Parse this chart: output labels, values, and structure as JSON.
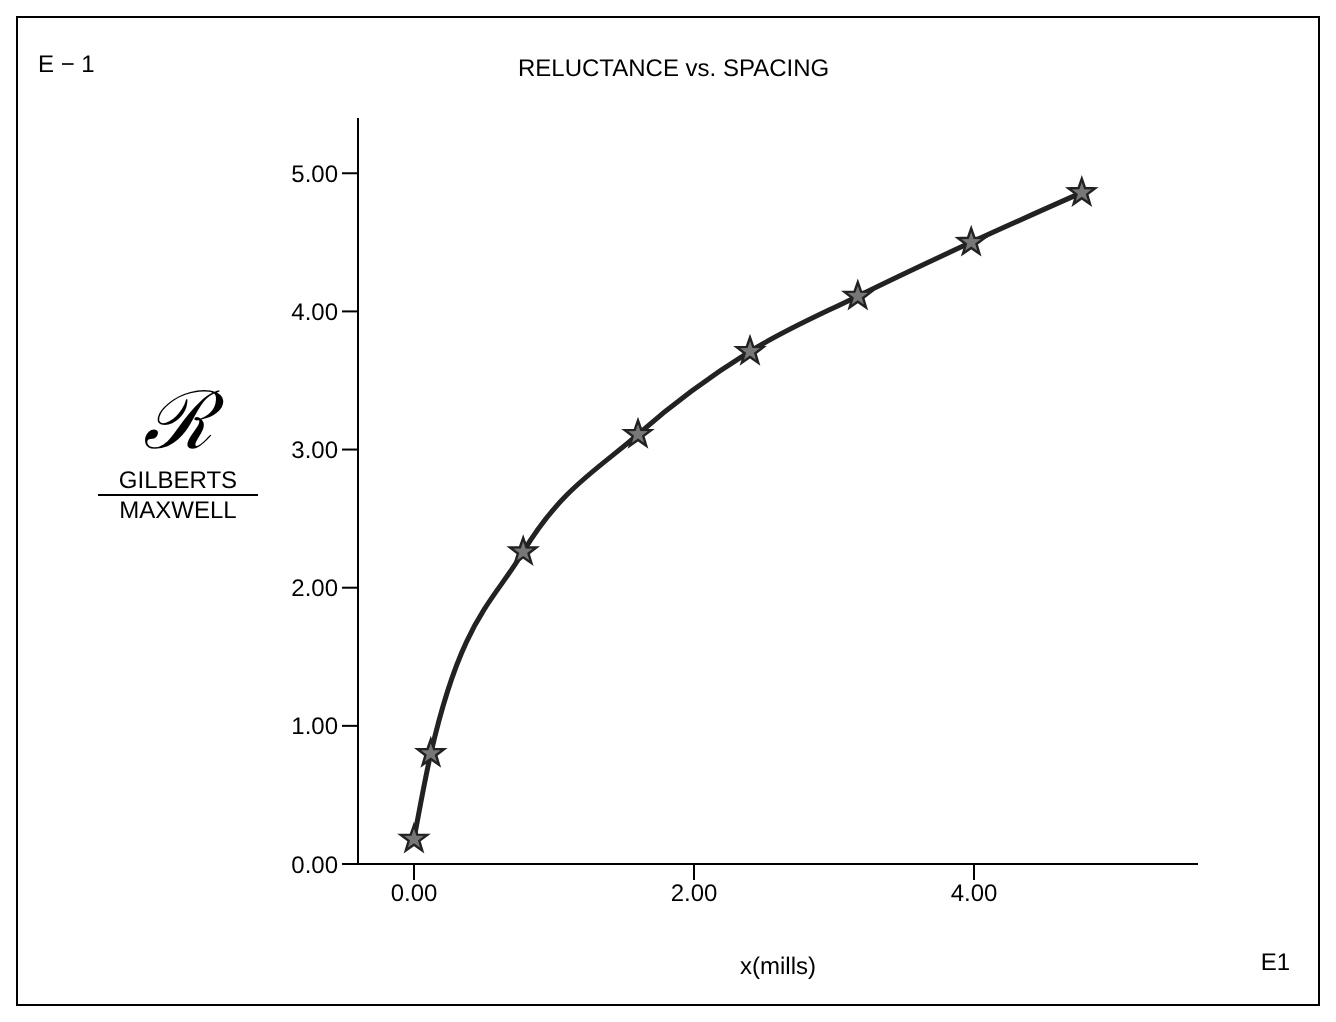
{
  "chart_data": {
    "type": "line",
    "title": "RELUCTANCE vs. SPACING",
    "xlabel": "x(mills)",
    "ylabel": "ℛ\nGILBERTS\nMAXWELL",
    "annotations": [
      "E − 1",
      "E1"
    ],
    "x": [
      0,
      0.12,
      0.78,
      1.6,
      2.4,
      3.17,
      3.98,
      4.77
    ],
    "series": [
      {
        "color": "#222222",
        "values": [
          0.18,
          0.8,
          2.26,
          3.11,
          3.71,
          4.11,
          4.5,
          4.86
        ]
      }
    ],
    "xlim": [
      -0.4,
      5.6
    ],
    "ylim": [
      0,
      5.4
    ],
    "xticks": [
      {
        "value": 0,
        "label": "0.00"
      },
      {
        "value": 2,
        "label": "2.00"
      },
      {
        "value": 4,
        "label": "4.00"
      }
    ],
    "yticks": [
      {
        "value": 0,
        "label": "0.00"
      },
      {
        "value": 1,
        "label": "1.00"
      },
      {
        "value": 2,
        "label": "2.00"
      },
      {
        "value": 3,
        "label": "3.00"
      },
      {
        "value": 4,
        "label": "4.00"
      },
      {
        "value": 5,
        "label": "5.00"
      }
    ],
    "marker": "star",
    "line_style": "solid",
    "grid": false,
    "legend": false
  }
}
